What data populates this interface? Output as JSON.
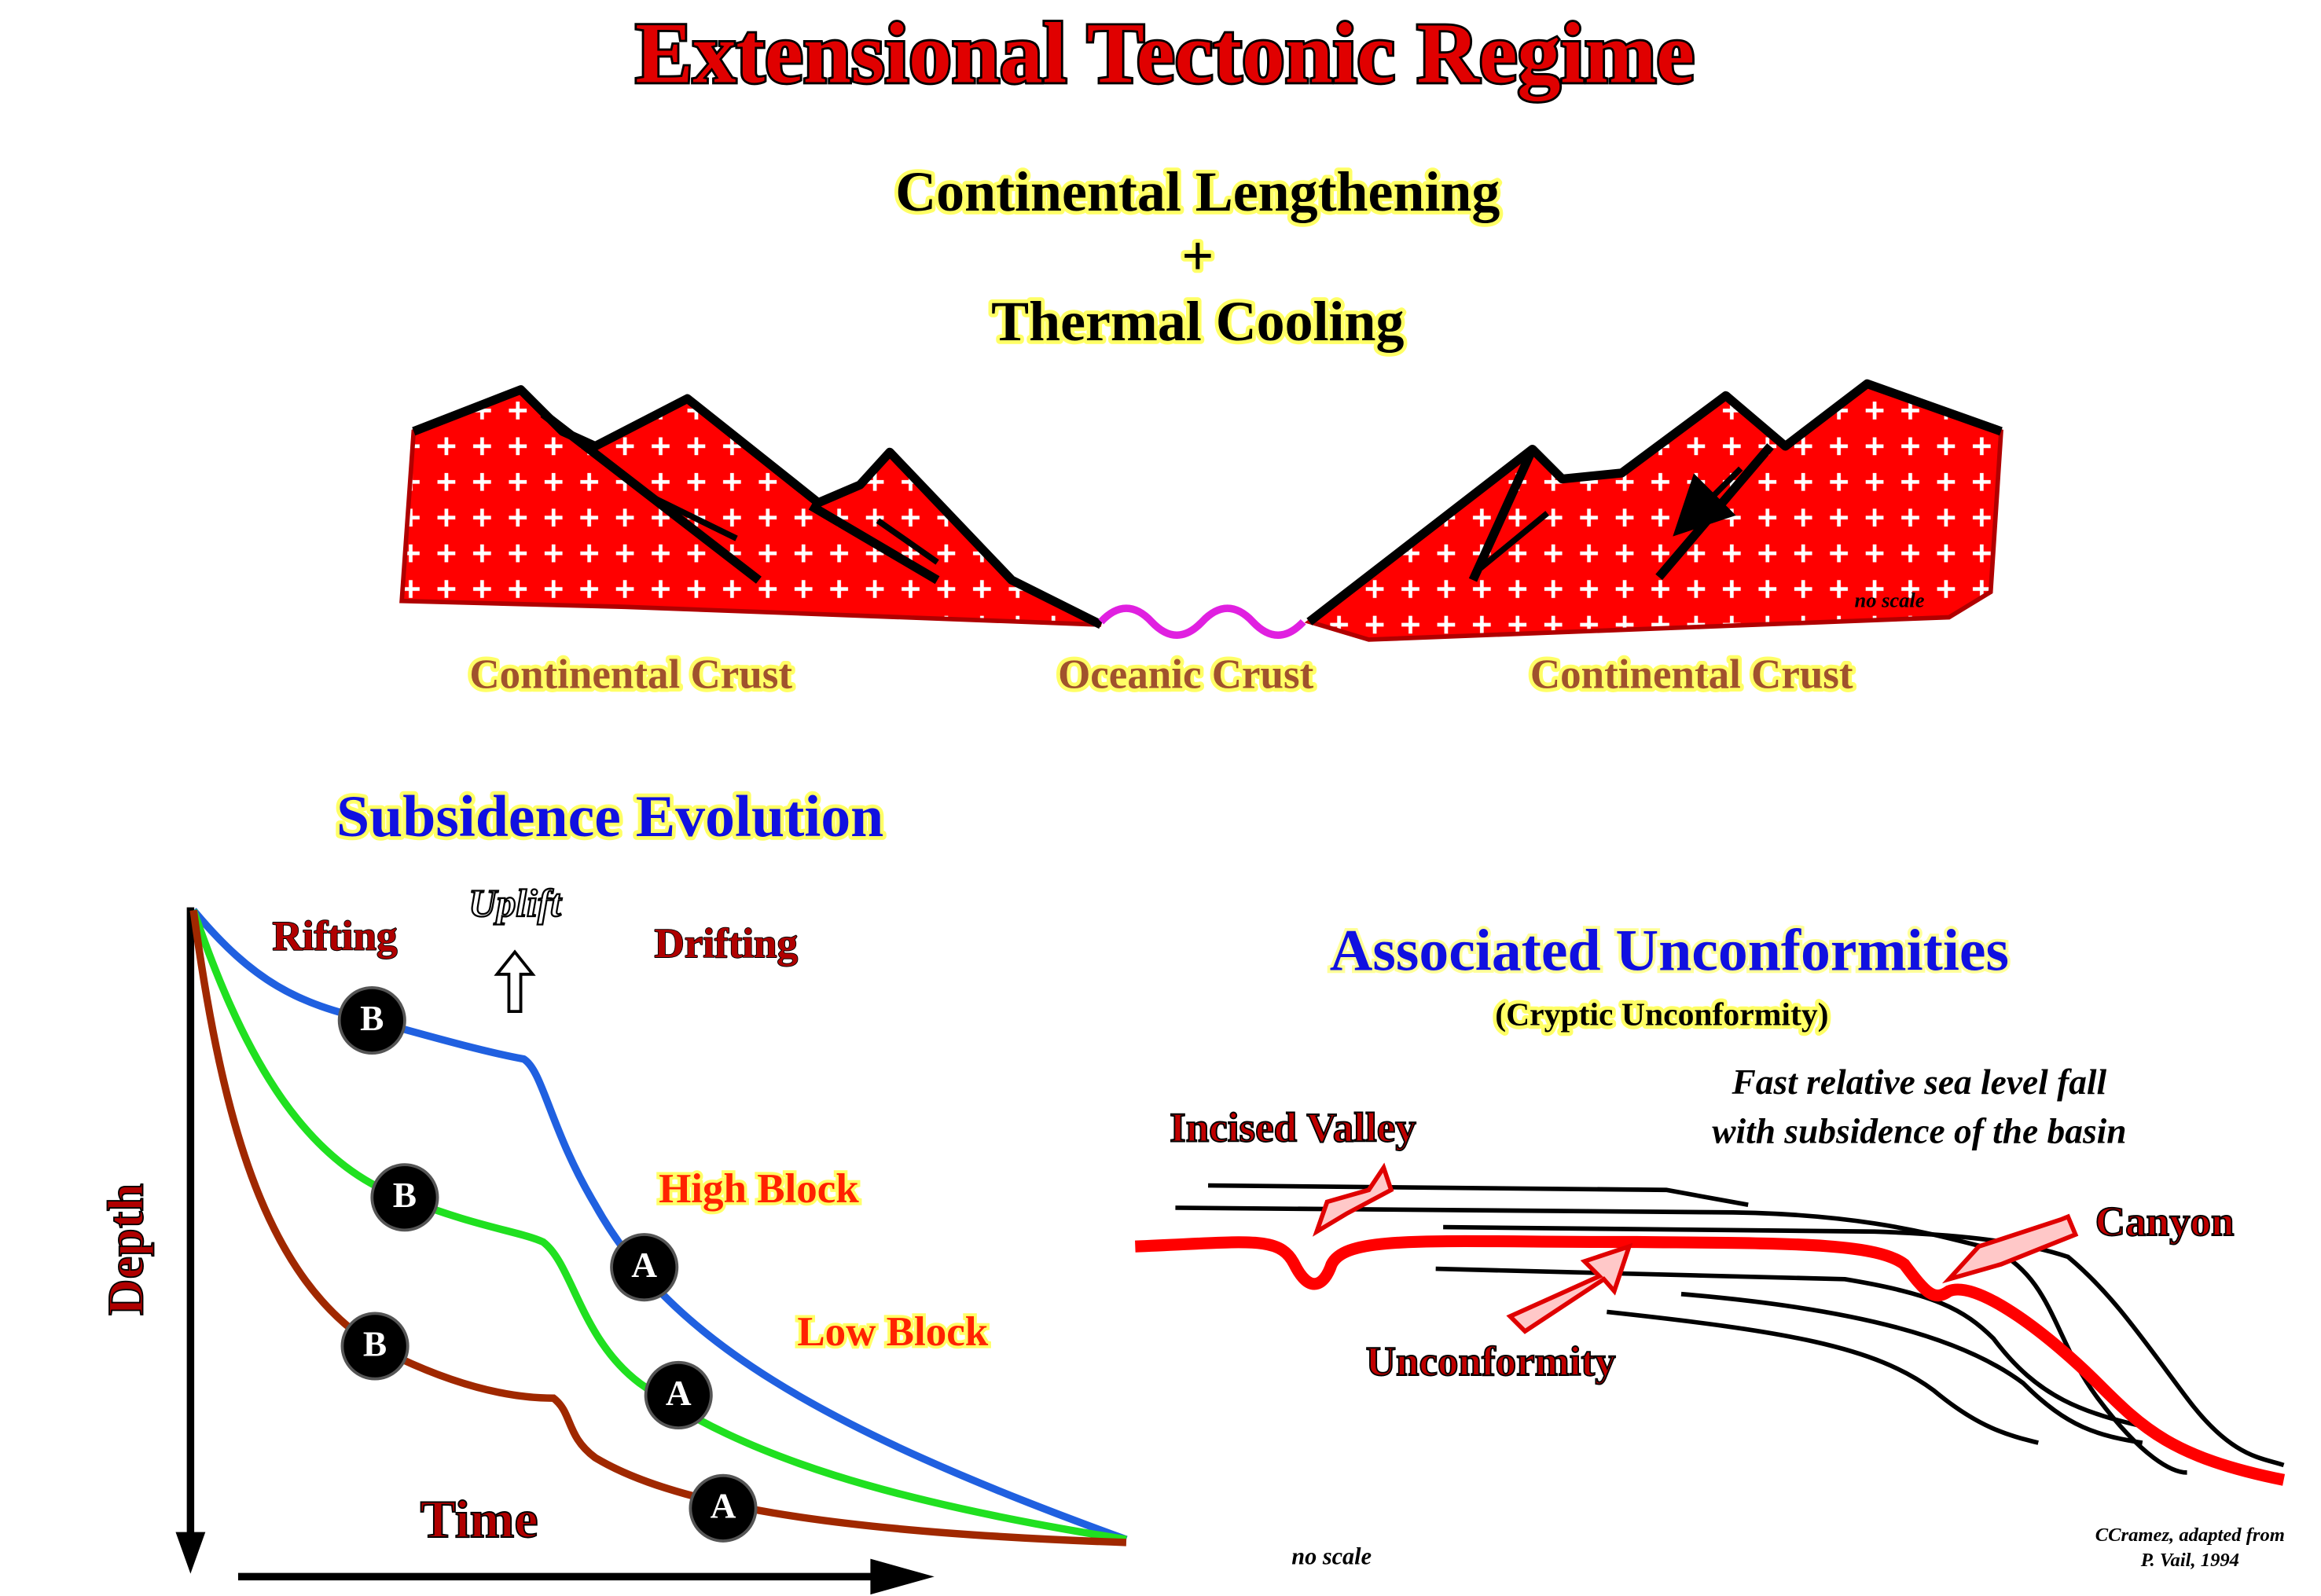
{
  "title": "Extensional Tectonic Regime",
  "subtitle": {
    "line1": "Continental Lengthening",
    "plus": "+",
    "line2": "Thermal Cooling"
  },
  "cross_section": {
    "labels": [
      "Continental Crust",
      "Oceanic Crust",
      "Continental Crust"
    ],
    "note": "no scale"
  },
  "subsidence": {
    "title": "Subsidence Evolution",
    "phases": [
      "Rifting",
      "Uplift",
      "Drifting"
    ],
    "blocks": [
      "High Block",
      "Low Block"
    ],
    "y_label": "Depth",
    "x_label": "Time",
    "markers": [
      "B",
      "B",
      "B",
      "A",
      "A",
      "A"
    ]
  },
  "unconformities": {
    "title": "Associated Unconformities",
    "subtitle": "(Cryptic Unconformity)",
    "caption_lines": [
      "Fast relative sea level fall",
      "with subsidence of the basin"
    ],
    "labels": [
      "Incised Valley",
      "Canyon",
      "Unconformity"
    ],
    "note": "no scale",
    "credit_lines": [
      "CCramez, adapted from",
      "P. Vail, 1994"
    ]
  }
}
